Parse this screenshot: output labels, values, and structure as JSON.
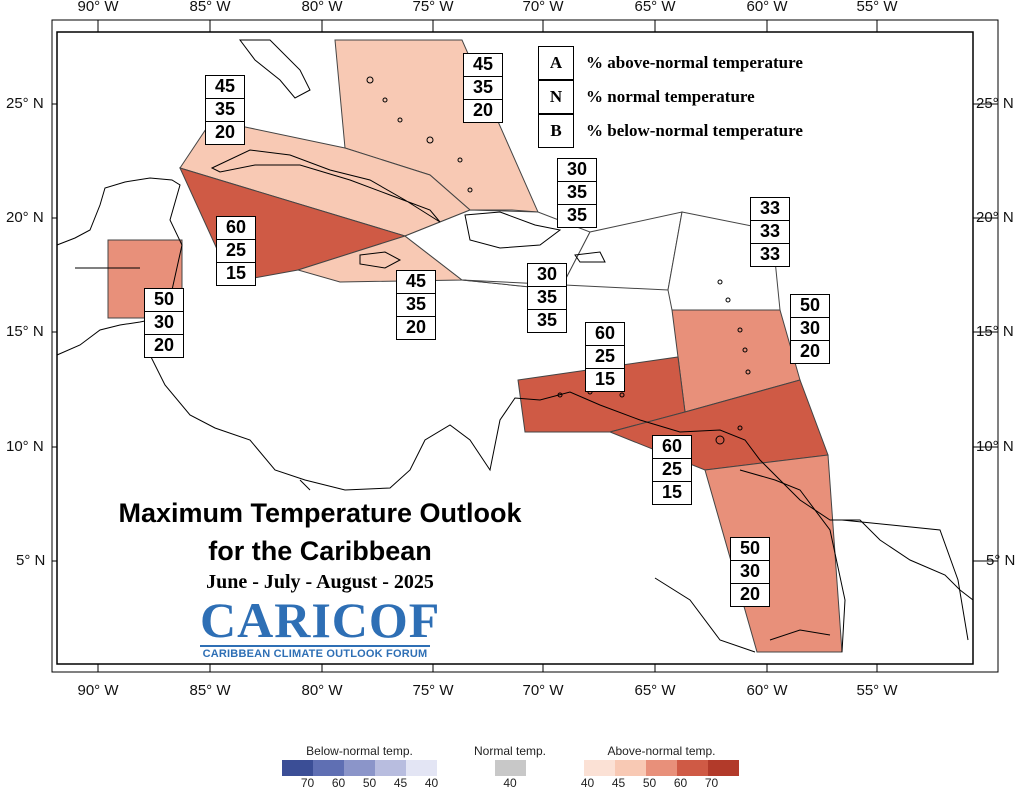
{
  "map": {
    "lon_labels": [
      "90° W",
      "85° W",
      "80° W",
      "75° W",
      "70° W",
      "65° W",
      "60° W",
      "55° W"
    ],
    "lat_labels": [
      "25° N",
      "20° N",
      "15° N",
      "10° N",
      "5° N"
    ]
  },
  "regions": [
    {
      "name": "bahamas",
      "above": "45",
      "normal": "35",
      "below": "20",
      "color": "#f8c9b4"
    },
    {
      "name": "cuba",
      "above": "45",
      "normal": "35",
      "below": "20",
      "color": "#f8c9b4"
    },
    {
      "name": "cayman-jamaica",
      "above": "60",
      "normal": "25",
      "below": "15",
      "color": "#cf5a45"
    },
    {
      "name": "south-jamaica",
      "above": "45",
      "normal": "35",
      "below": "20",
      "color": "#f8c9b4"
    },
    {
      "name": "hispaniola",
      "above": "30",
      "normal": "35",
      "below": "35",
      "color": "#ffffff"
    },
    {
      "name": "puerto-rico",
      "above": "30",
      "normal": "35",
      "below": "35",
      "color": "#ffffff"
    },
    {
      "name": "northern-leewards",
      "above": "33",
      "normal": "33",
      "below": "33",
      "color": "#ffffff"
    },
    {
      "name": "belize",
      "above": "50",
      "normal": "30",
      "below": "20",
      "color": "#e8907a"
    },
    {
      "name": "windwards",
      "above": "50",
      "normal": "30",
      "below": "20",
      "color": "#e8907a"
    },
    {
      "name": "abc-islands",
      "above": "60",
      "normal": "25",
      "below": "15",
      "color": "#cf5a45"
    },
    {
      "name": "trinidad",
      "above": "60",
      "normal": "25",
      "below": "15",
      "color": "#cf5a45"
    },
    {
      "name": "guianas",
      "above": "50",
      "normal": "30",
      "below": "20",
      "color": "#e8907a"
    }
  ],
  "key": {
    "items": [
      {
        "letter": "A",
        "text": "% above-normal temperature"
      },
      {
        "letter": "N",
        "text": "% normal temperature"
      },
      {
        "letter": "B",
        "text": "% below-normal temperature"
      }
    ]
  },
  "title": {
    "line1": "Maximum Temperature Outlook",
    "line2": "for the Caribbean",
    "subtitle": "June - July - August - 2025"
  },
  "logo": {
    "word": "CARICOF",
    "subtitle": "CARIBBEAN CLIMATE OUTLOOK FORUM"
  },
  "legend": {
    "below": {
      "title": "Below-normal temp.",
      "ticks": [
        "70",
        "60",
        "50",
        "45",
        "40"
      ],
      "colors": [
        "#3b4e96",
        "#5f6fb3",
        "#8b95c9",
        "#b8bddf",
        "#e3e5f4"
      ]
    },
    "normal": {
      "title": "Normal temp.",
      "ticks": [
        "40"
      ],
      "colors": [
        "#c8c8c8"
      ]
    },
    "above": {
      "title": "Above-normal temp.",
      "ticks": [
        "40",
        "45",
        "50",
        "60",
        "70"
      ],
      "colors": [
        "#fbe1d5",
        "#f8c9b4",
        "#e8907a",
        "#cf5a45",
        "#b23a2a"
      ]
    }
  }
}
